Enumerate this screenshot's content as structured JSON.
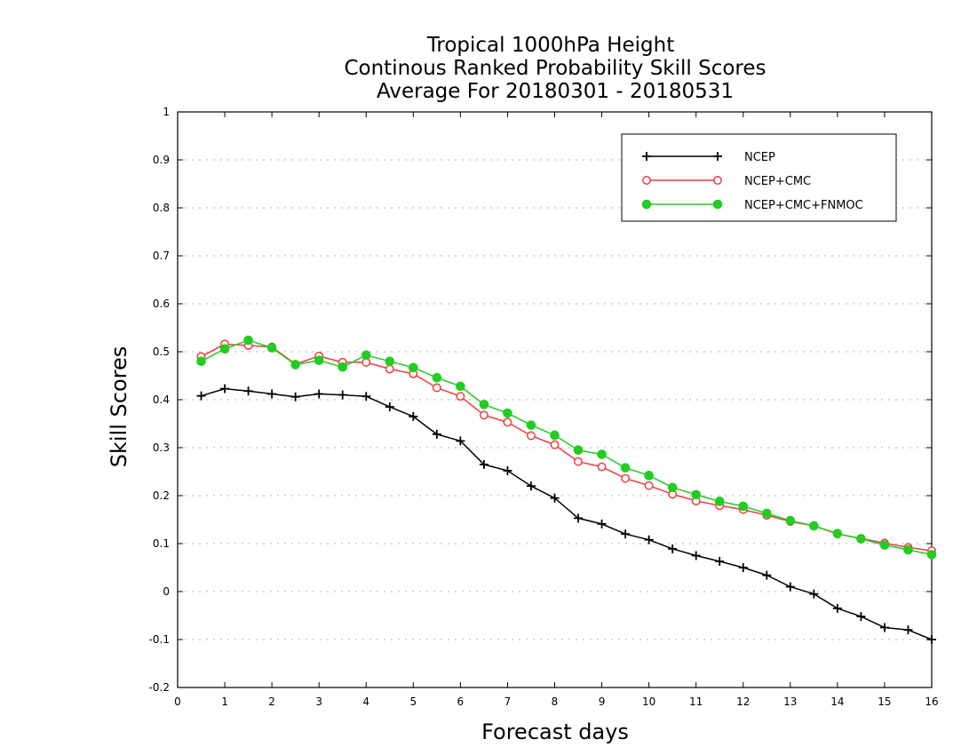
{
  "chart_data": {
    "type": "line",
    "title": [
      "Tropical 1000hPa Height",
      "Continous Ranked Probability Skill Scores",
      "Average For 20180301 - 20180531"
    ],
    "xlabel": "Forecast days",
    "ylabel": "Skill Scores",
    "xlim": [
      0,
      16
    ],
    "ylim": [
      -0.2,
      1
    ],
    "xticks": [
      "0",
      "1",
      "2",
      "3",
      "4",
      "5",
      "6",
      "7",
      "8",
      "9",
      "10",
      "11",
      "12",
      "13",
      "14",
      "15",
      "16"
    ],
    "yticks": [
      "-0.2",
      "-0.1",
      "0",
      "0.1",
      "0.2",
      "0.3",
      "0.4",
      "0.5",
      "0.6",
      "0.7",
      "0.8",
      "0.9",
      "1"
    ],
    "grid": "dotted-horizontal",
    "legend_position": "top-right",
    "x": [
      0.5,
      1,
      1.5,
      2,
      2.5,
      3,
      3.5,
      4,
      4.5,
      5,
      5.5,
      6,
      6.5,
      7,
      7.5,
      8,
      8.5,
      9,
      9.5,
      10,
      10.5,
      11,
      11.5,
      12,
      12.5,
      13,
      13.5,
      14,
      14.5,
      15,
      15.5,
      16
    ],
    "series": [
      {
        "name": "NCEP",
        "color": "#000000",
        "marker": "plus",
        "values": [
          0.408,
          0.423,
          0.418,
          0.412,
          0.406,
          0.412,
          0.41,
          0.407,
          0.385,
          0.365,
          0.328,
          0.314,
          0.265,
          0.252,
          0.22,
          0.195,
          0.153,
          0.141,
          0.12,
          0.108,
          0.089,
          0.075,
          0.063,
          0.05,
          0.034,
          0.01,
          -0.005,
          -0.035,
          -0.052,
          -0.075,
          -0.08,
          -0.1
        ]
      },
      {
        "name": "NCEP+CMC",
        "color": "#f03c3c",
        "marker": "open-circle",
        "values": [
          0.49,
          0.516,
          0.513,
          0.51,
          0.474,
          0.491,
          0.478,
          0.478,
          0.464,
          0.454,
          0.425,
          0.407,
          0.368,
          0.353,
          0.325,
          0.306,
          0.271,
          0.26,
          0.236,
          0.221,
          0.203,
          0.189,
          0.179,
          0.171,
          0.159,
          0.146,
          0.137,
          0.12,
          0.111,
          0.101,
          0.092,
          0.085
        ]
      },
      {
        "name": "NCEP+CMC+FNMOC",
        "color": "#22cc22",
        "marker": "filled-circle",
        "values": [
          0.48,
          0.506,
          0.524,
          0.508,
          0.473,
          0.482,
          0.468,
          0.493,
          0.48,
          0.467,
          0.446,
          0.428,
          0.39,
          0.372,
          0.347,
          0.326,
          0.295,
          0.286,
          0.258,
          0.242,
          0.217,
          0.202,
          0.188,
          0.178,
          0.163,
          0.148,
          0.137,
          0.121,
          0.11,
          0.097,
          0.087,
          0.077
        ]
      }
    ]
  }
}
